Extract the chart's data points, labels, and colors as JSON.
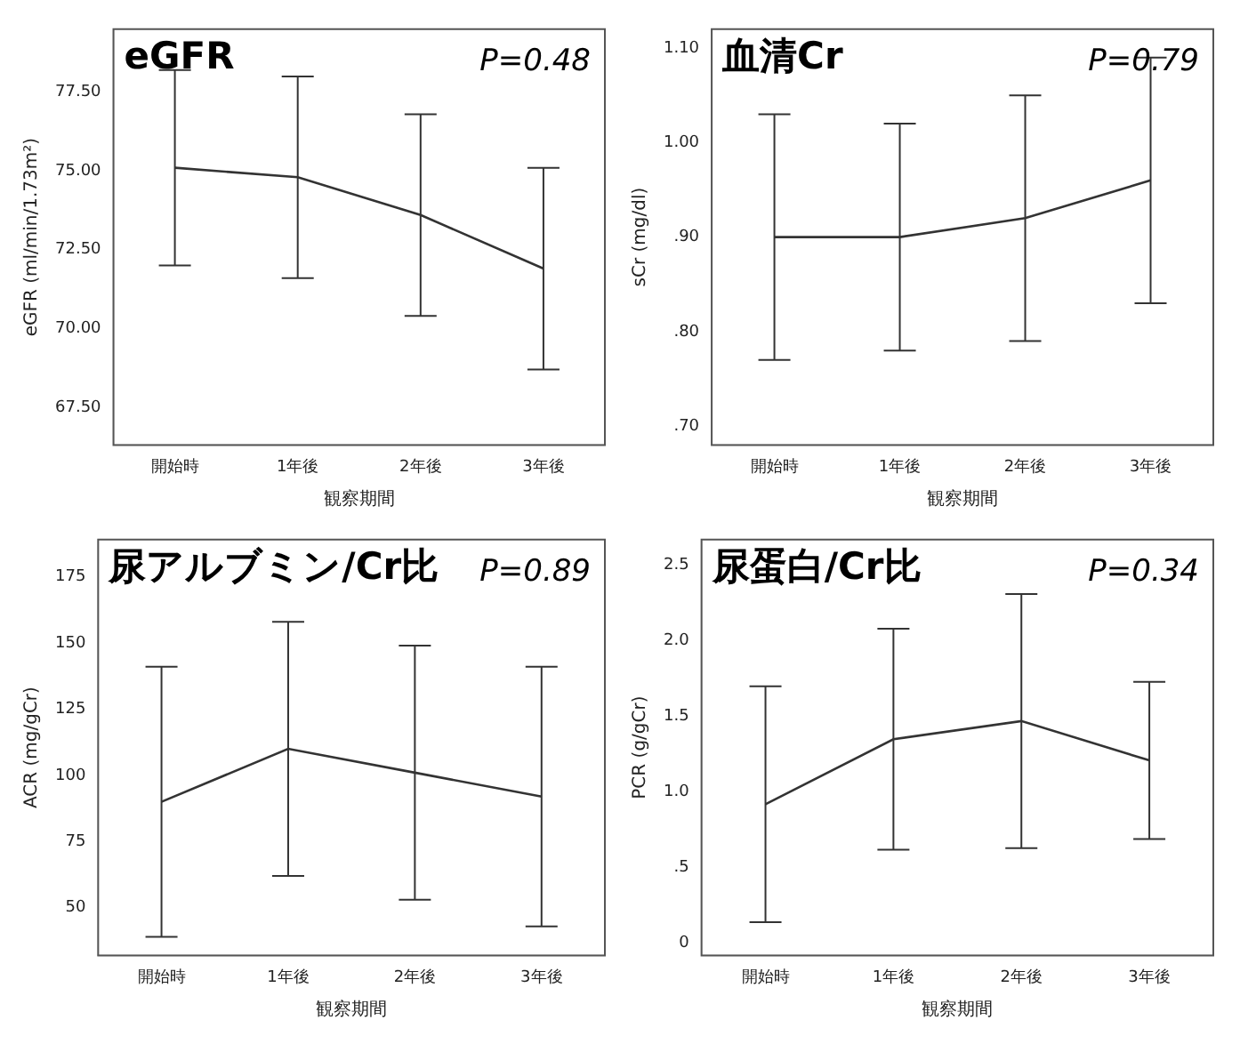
{
  "chart_data": [
    {
      "type": "line",
      "title": "eGFR",
      "annotations": [
        "P=0.48"
      ],
      "xlabel": "観察期間",
      "ylabel": "eGFR (ml/min/1.73m²)",
      "categories": [
        "開始時",
        "1年後",
        "2年後",
        "3年後"
      ],
      "color": "#333333",
      "values": [
        75.1,
        74.8,
        73.6,
        71.9
      ],
      "errors": [
        3.1,
        3.2,
        3.2,
        3.2
      ],
      "ylim": [
        66.3,
        79.5
      ],
      "yticks": [
        {
          "value": 67.5,
          "label": "67.50"
        },
        {
          "value": 70,
          "label": "70.00"
        },
        {
          "value": 72.5,
          "label": "72.50"
        },
        {
          "value": 75,
          "label": "75.00"
        },
        {
          "value": 77.5,
          "label": "77.50"
        }
      ]
    },
    {
      "type": "line",
      "title": "血清Cr",
      "annotations": [
        "P=0.79"
      ],
      "xlabel": "観察期間",
      "ylabel": "sCr (mg/dl)",
      "categories": [
        "開始時",
        "1年後",
        "2年後",
        "3年後"
      ],
      "color": "#333333",
      "values": [
        0.9,
        0.9,
        0.92,
        0.96
      ],
      "errors": [
        0.13,
        0.12,
        0.13,
        0.13
      ],
      "ylim": [
        0.68,
        1.12
      ],
      "yticks": [
        {
          "value": 0.7,
          "label": ".70"
        },
        {
          "value": 0.8,
          "label": ".80"
        },
        {
          "value": 0.9,
          "label": ".90"
        },
        {
          "value": 1.0,
          "label": "1.00"
        },
        {
          "value": 1.1,
          "label": "1.10"
        }
      ]
    },
    {
      "type": "line",
      "title": "尿アルブミン/Cr比",
      "annotations": [
        "P=0.89"
      ],
      "xlabel": "観察期間",
      "ylabel": "ACR (mg/gCr)",
      "categories": [
        "開始時",
        "1年後",
        "2年後",
        "3年後"
      ],
      "color": "#333333",
      "values": [
        90,
        110,
        101,
        92
      ],
      "errors": [
        51,
        48,
        48,
        49
      ],
      "ylim": [
        32,
        189
      ],
      "yticks": [
        50,
        75,
        100,
        125,
        150,
        175
      ]
    },
    {
      "type": "line",
      "title": "尿蛋白/Cr比",
      "annotations": [
        "P=0.34"
      ],
      "xlabel": "観察期間",
      "ylabel": "PCR (g/gCr)",
      "categories": [
        "開始時",
        "1年後",
        "2年後",
        "3年後"
      ],
      "color": "#333333",
      "values": [
        0.92,
        1.35,
        1.47,
        1.21
      ],
      "errors": [
        0.78,
        0.73,
        0.84,
        0.52
      ],
      "ylim": [
        -0.08,
        2.67
      ],
      "yticks": [
        0,
        {
          "value": 0.5,
          "label": ".5"
        },
        {
          "value": 1,
          "label": "1.0"
        },
        {
          "value": 1.5,
          "label": "1.5"
        },
        {
          "value": 2,
          "label": "2.0"
        },
        {
          "value": 2.5,
          "label": "2.5"
        }
      ]
    }
  ]
}
